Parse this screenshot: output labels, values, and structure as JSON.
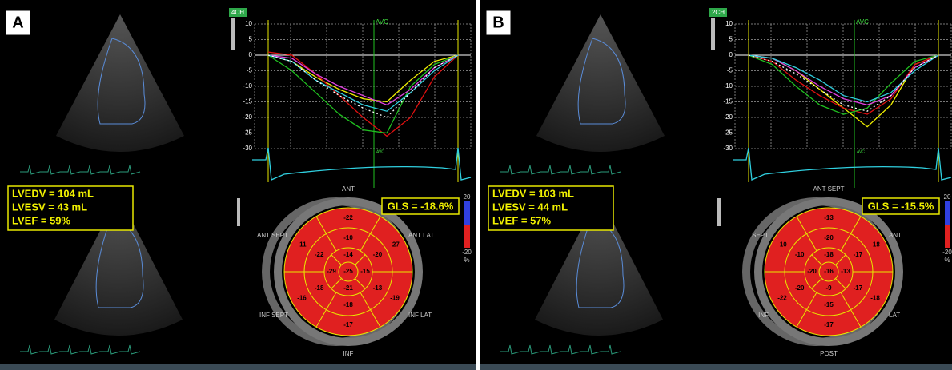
{
  "panels": [
    {
      "label": "A",
      "view": "4CH",
      "avc": "AVC",
      "avc_small": "AVC",
      "ylim": [
        10,
        -30
      ],
      "yticks": [
        10,
        5,
        0,
        -5,
        -10,
        -15,
        -20,
        -25,
        -30
      ],
      "curves": [
        {
          "color": "#f0f000",
          "values": [
            0,
            -2,
            -7,
            -11,
            -14,
            -15,
            -8,
            -2,
            0
          ]
        },
        {
          "color": "#e01010",
          "values": [
            1,
            0,
            -6,
            -13,
            -20,
            -26,
            -20,
            -7,
            0
          ]
        },
        {
          "color": "#20c020",
          "values": [
            0,
            -5,
            -12,
            -19,
            -24,
            -25,
            -10,
            -3,
            0
          ]
        },
        {
          "color": "#e040e0",
          "values": [
            0,
            -1,
            -6,
            -10,
            -13,
            -16,
            -11,
            -4,
            0
          ]
        },
        {
          "color": "#30d0e0",
          "values": [
            0,
            -2,
            -8,
            -12,
            -16,
            -18,
            -12,
            -5,
            0
          ]
        },
        {
          "color": "#ffffff",
          "values": [
            0,
            -2,
            -8,
            -13,
            -17,
            -20,
            -12,
            -4,
            0
          ]
        }
      ],
      "measurements": [
        "LVEDV = 104 mL",
        "LVESV = 43 mL",
        "LVEF = 59%"
      ],
      "gls": "GLS = -18.6%",
      "colorbar": [
        "20",
        "-20",
        "%"
      ],
      "segment_labels": [
        "ANT",
        "ANT LAT",
        "INF LAT",
        "INF",
        "INF SEPT",
        "ANT SEPT"
      ],
      "basal": [
        -22,
        -27,
        -19,
        -17,
        -16,
        -11
      ],
      "mid": [
        -10,
        -20,
        -13,
        -18,
        -18,
        -22
      ],
      "apical": [
        -14,
        -15,
        -21,
        -29
      ],
      "apex": -25
    },
    {
      "label": "B",
      "view": "2CH",
      "avc": "AVC",
      "avc_small": "AVC",
      "ylim": [
        10,
        -30
      ],
      "yticks": [
        10,
        5,
        0,
        -5,
        -10,
        -15,
        -20,
        -25,
        -30
      ],
      "curves": [
        {
          "color": "#f0f000",
          "values": [
            0,
            -1,
            -5,
            -11,
            -17,
            -23,
            -16,
            -3,
            0
          ]
        },
        {
          "color": "#e01010",
          "values": [
            0,
            -2,
            -8,
            -13,
            -17,
            -19,
            -14,
            -3,
            0
          ]
        },
        {
          "color": "#20c020",
          "values": [
            0,
            -3,
            -10,
            -16,
            -19,
            -17,
            -9,
            -2,
            0
          ]
        },
        {
          "color": "#e040e0",
          "values": [
            0,
            -1,
            -5,
            -10,
            -14,
            -16,
            -13,
            -4,
            0
          ]
        },
        {
          "color": "#30d0e0",
          "values": [
            0,
            -1,
            -4,
            -8,
            -13,
            -15,
            -12,
            -5,
            0
          ]
        },
        {
          "color": "#ffffff",
          "values": [
            0,
            -2,
            -6,
            -11,
            -16,
            -18,
            -13,
            -4,
            0
          ]
        }
      ],
      "measurements": [
        "LVEDV = 103 mL",
        "LVESV = 44 mL",
        "LVEF = 57%"
      ],
      "gls": "GLS = -15.5%",
      "colorbar": [
        "20",
        "-20",
        "%"
      ],
      "segment_labels": [
        "ANT SEPT",
        "ANT",
        "LAT",
        "POST",
        "INF",
        "SEPT"
      ],
      "basal": [
        -13,
        -18,
        -18,
        -17,
        -22,
        -10
      ],
      "mid": [
        -20,
        -17,
        -17,
        -15,
        -20,
        -10
      ],
      "apical": [
        -18,
        -13,
        -9,
        -20
      ],
      "apex": -16
    }
  ]
}
